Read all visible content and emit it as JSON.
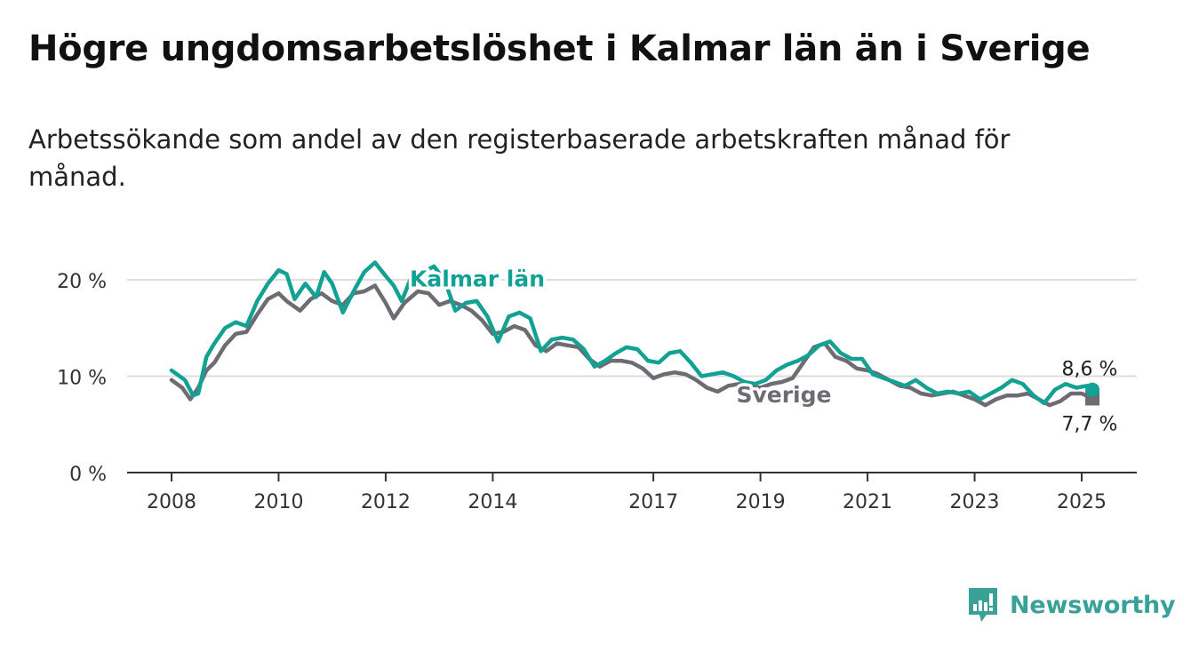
{
  "title": "Högre ungdomsarbetslöshet i Kalmar län än i Sverige",
  "subtitle": "Arbetssökande som andel av den registerbaserade arbetskraften månad för månad.",
  "brand": "Newsworthy",
  "colors": {
    "kalmar": "#13a194",
    "sverige": "#6e6c72",
    "grid": "#dedede",
    "axis": "#333333",
    "brand": "#3aa199"
  },
  "chart_data": {
    "type": "line",
    "title": "Högre ungdomsarbetslöshet i Kalmar län än i Sverige",
    "ylim": [
      0,
      20
    ],
    "y_ticks": [
      0,
      10,
      20
    ],
    "y_tick_labels": [
      "0 %",
      "10 %",
      "20 %"
    ],
    "x_ticks": [
      2008,
      2010,
      2012,
      2014,
      2017,
      2019,
      2021,
      2023,
      2025
    ],
    "x_tick_labels": [
      "2008",
      "2010",
      "2012",
      "2014",
      "2017",
      "2019",
      "2021",
      "2023",
      "2025"
    ],
    "grid": true,
    "series": [
      {
        "name": "Kalmar län",
        "end_label": "8,6 %",
        "x": [
          2008.0,
          2008.25,
          2008.4,
          2008.5,
          2008.65,
          2008.8,
          2009.0,
          2009.2,
          2009.4,
          2009.6,
          2009.8,
          2010.0,
          2010.15,
          2010.3,
          2010.5,
          2010.7,
          2010.85,
          2011.0,
          2011.2,
          2011.4,
          2011.6,
          2011.8,
          2012.0,
          2012.15,
          2012.3,
          2012.5,
          2012.7,
          2012.9,
          2013.1,
          2013.3,
          2013.5,
          2013.7,
          2013.9,
          2014.1,
          2014.3,
          2014.5,
          2014.7,
          2014.9,
          2015.1,
          2015.3,
          2015.5,
          2015.7,
          2015.9,
          2016.1,
          2016.3,
          2016.5,
          2016.7,
          2016.9,
          2017.1,
          2017.3,
          2017.5,
          2017.7,
          2017.9,
          2018.1,
          2018.3,
          2018.5,
          2018.7,
          2018.9,
          2019.1,
          2019.3,
          2019.5,
          2019.7,
          2019.9,
          2020.1,
          2020.3,
          2020.5,
          2020.7,
          2020.9,
          2021.1,
          2021.3,
          2021.5,
          2021.7,
          2021.9,
          2022.1,
          2022.3,
          2022.5,
          2022.7,
          2022.9,
          2023.1,
          2023.3,
          2023.5,
          2023.7,
          2023.9,
          2024.1,
          2024.3,
          2024.5,
          2024.7,
          2024.9,
          2025.1,
          2025.2
        ],
        "values": [
          10.6,
          9.6,
          8.0,
          8.2,
          12.0,
          13.4,
          15.0,
          15.6,
          15.2,
          17.8,
          19.6,
          21.0,
          20.6,
          18.0,
          19.6,
          18.2,
          20.8,
          19.6,
          16.6,
          18.8,
          20.8,
          21.8,
          20.4,
          19.4,
          17.8,
          20.6,
          20.8,
          21.4,
          20.0,
          16.8,
          17.6,
          17.8,
          16.2,
          13.6,
          16.2,
          16.6,
          16.0,
          12.6,
          13.8,
          14.0,
          13.8,
          12.8,
          11.0,
          11.6,
          12.4,
          13.0,
          12.8,
          11.6,
          11.4,
          12.4,
          12.6,
          11.4,
          10.0,
          10.2,
          10.4,
          10.0,
          9.4,
          9.2,
          9.6,
          10.6,
          11.2,
          11.6,
          12.2,
          13.2,
          13.6,
          12.4,
          11.8,
          11.8,
          10.2,
          9.8,
          9.4,
          9.0,
          9.6,
          8.8,
          8.2,
          8.4,
          8.2,
          8.4,
          7.6,
          8.2,
          8.8,
          9.6,
          9.2,
          8.0,
          7.2,
          8.6,
          9.2,
          8.8,
          9.0,
          8.6
        ]
      },
      {
        "name": "Sverige",
        "end_label": "7,7 %",
        "x": [
          2008.0,
          2008.2,
          2008.35,
          2008.5,
          2008.65,
          2008.8,
          2009.0,
          2009.2,
          2009.4,
          2009.6,
          2009.8,
          2010.0,
          2010.15,
          2010.4,
          2010.6,
          2010.8,
          2011.0,
          2011.2,
          2011.4,
          2011.6,
          2011.8,
          2012.0,
          2012.15,
          2012.35,
          2012.6,
          2012.8,
          2013.0,
          2013.2,
          2013.4,
          2013.6,
          2013.8,
          2014.0,
          2014.2,
          2014.4,
          2014.6,
          2014.8,
          2015.0,
          2015.2,
          2015.4,
          2015.6,
          2015.8,
          2016.0,
          2016.2,
          2016.4,
          2016.6,
          2016.8,
          2017.0,
          2017.2,
          2017.4,
          2017.6,
          2017.8,
          2018.0,
          2018.2,
          2018.4,
          2018.6,
          2018.8,
          2019.0,
          2019.2,
          2019.4,
          2019.6,
          2019.8,
          2020.0,
          2020.2,
          2020.4,
          2020.6,
          2020.8,
          2021.0,
          2021.2,
          2021.4,
          2021.6,
          2021.8,
          2022.0,
          2022.2,
          2022.4,
          2022.6,
          2022.8,
          2023.0,
          2023.2,
          2023.4,
          2023.6,
          2023.8,
          2024.0,
          2024.2,
          2024.4,
          2024.6,
          2024.8,
          2025.0,
          2025.2
        ],
        "values": [
          9.6,
          8.8,
          7.6,
          8.8,
          10.6,
          11.4,
          13.2,
          14.4,
          14.6,
          16.4,
          18.0,
          18.6,
          17.8,
          16.8,
          18.0,
          18.6,
          17.8,
          17.4,
          18.6,
          18.8,
          19.4,
          17.6,
          16.0,
          17.6,
          18.8,
          18.6,
          17.4,
          17.8,
          17.4,
          16.8,
          15.8,
          14.4,
          14.6,
          15.2,
          14.8,
          13.2,
          12.6,
          13.4,
          13.2,
          13.0,
          11.8,
          11.0,
          11.6,
          11.6,
          11.4,
          10.8,
          9.8,
          10.2,
          10.4,
          10.2,
          9.6,
          8.8,
          8.4,
          9.0,
          9.2,
          9.0,
          8.8,
          9.2,
          9.4,
          9.8,
          11.4,
          13.0,
          13.4,
          12.0,
          11.6,
          10.8,
          10.6,
          10.2,
          9.6,
          9.0,
          8.8,
          8.2,
          8.0,
          8.2,
          8.4,
          8.0,
          7.6,
          7.0,
          7.6,
          8.0,
          8.0,
          8.2,
          7.6,
          7.0,
          7.4,
          8.2,
          8.2,
          7.7
        ]
      }
    ]
  }
}
